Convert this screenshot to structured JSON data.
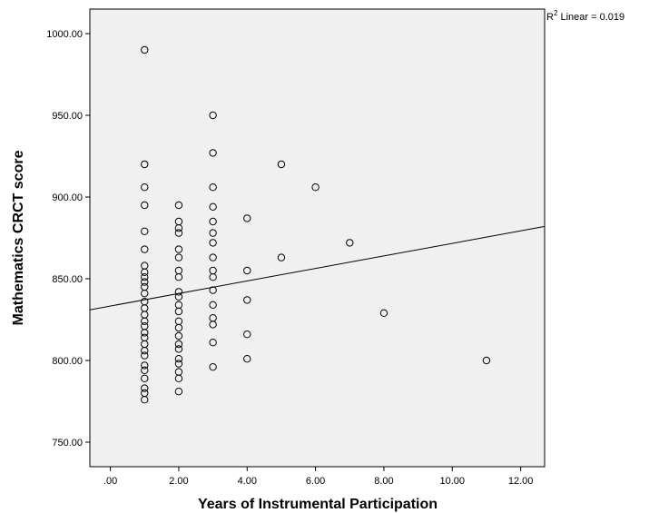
{
  "chart_data": {
    "type": "scatter",
    "xlabel": "Years of Instrumental Participation",
    "ylabel": "Mathematics CRCT score",
    "xlim": [
      -0.6,
      12.7
    ],
    "ylim": [
      735,
      1015
    ],
    "x_ticks": [
      0,
      2,
      4,
      6,
      8,
      10,
      12
    ],
    "x_tick_labels": [
      ".00",
      "2.00",
      "4.00",
      "6.00",
      "8.00",
      "10.00",
      "12.00"
    ],
    "y_ticks": [
      750,
      800,
      850,
      900,
      950,
      1000
    ],
    "y_tick_labels": [
      "750.00",
      "800.00",
      "850.00",
      "900.00",
      "950.00",
      "1000.00"
    ],
    "fit_line": {
      "x": [
        -0.6,
        12.7
      ],
      "y": [
        831,
        882
      ]
    },
    "annotation": {
      "prefix": "R",
      "superscript": "2",
      "text": " Linear = 0.019"
    },
    "grid": false,
    "points": [
      {
        "x": 1,
        "y": 990
      },
      {
        "x": 1,
        "y": 920
      },
      {
        "x": 1,
        "y": 906
      },
      {
        "x": 1,
        "y": 895
      },
      {
        "x": 1,
        "y": 879
      },
      {
        "x": 1,
        "y": 868
      },
      {
        "x": 1,
        "y": 858
      },
      {
        "x": 1,
        "y": 854
      },
      {
        "x": 1,
        "y": 851
      },
      {
        "x": 1,
        "y": 848
      },
      {
        "x": 1,
        "y": 845
      },
      {
        "x": 1,
        "y": 841
      },
      {
        "x": 1,
        "y": 836
      },
      {
        "x": 1,
        "y": 832
      },
      {
        "x": 1,
        "y": 828
      },
      {
        "x": 1,
        "y": 824
      },
      {
        "x": 1,
        "y": 821
      },
      {
        "x": 1,
        "y": 817
      },
      {
        "x": 1,
        "y": 814
      },
      {
        "x": 1,
        "y": 810
      },
      {
        "x": 1,
        "y": 806
      },
      {
        "x": 1,
        "y": 803
      },
      {
        "x": 1,
        "y": 797
      },
      {
        "x": 1,
        "y": 794
      },
      {
        "x": 1,
        "y": 789
      },
      {
        "x": 1,
        "y": 783
      },
      {
        "x": 1,
        "y": 780
      },
      {
        "x": 1,
        "y": 776
      },
      {
        "x": 2,
        "y": 895
      },
      {
        "x": 2,
        "y": 885
      },
      {
        "x": 2,
        "y": 881
      },
      {
        "x": 2,
        "y": 878
      },
      {
        "x": 2,
        "y": 868
      },
      {
        "x": 2,
        "y": 863
      },
      {
        "x": 2,
        "y": 855
      },
      {
        "x": 2,
        "y": 851
      },
      {
        "x": 2,
        "y": 842
      },
      {
        "x": 2,
        "y": 839
      },
      {
        "x": 2,
        "y": 834
      },
      {
        "x": 2,
        "y": 830
      },
      {
        "x": 2,
        "y": 824
      },
      {
        "x": 2,
        "y": 820
      },
      {
        "x": 2,
        "y": 815
      },
      {
        "x": 2,
        "y": 810
      },
      {
        "x": 2,
        "y": 807
      },
      {
        "x": 2,
        "y": 801
      },
      {
        "x": 2,
        "y": 798
      },
      {
        "x": 2,
        "y": 793
      },
      {
        "x": 2,
        "y": 789
      },
      {
        "x": 2,
        "y": 781
      },
      {
        "x": 3,
        "y": 950
      },
      {
        "x": 3,
        "y": 927
      },
      {
        "x": 3,
        "y": 906
      },
      {
        "x": 3,
        "y": 894
      },
      {
        "x": 3,
        "y": 885
      },
      {
        "x": 3,
        "y": 878
      },
      {
        "x": 3,
        "y": 872
      },
      {
        "x": 3,
        "y": 863
      },
      {
        "x": 3,
        "y": 855
      },
      {
        "x": 3,
        "y": 851
      },
      {
        "x": 3,
        "y": 843
      },
      {
        "x": 3,
        "y": 834
      },
      {
        "x": 3,
        "y": 826
      },
      {
        "x": 3,
        "y": 822
      },
      {
        "x": 3,
        "y": 811
      },
      {
        "x": 3,
        "y": 796
      },
      {
        "x": 4,
        "y": 887
      },
      {
        "x": 4,
        "y": 855
      },
      {
        "x": 4,
        "y": 837
      },
      {
        "x": 4,
        "y": 816
      },
      {
        "x": 4,
        "y": 801
      },
      {
        "x": 5,
        "y": 920
      },
      {
        "x": 5,
        "y": 863
      },
      {
        "x": 6,
        "y": 906
      },
      {
        "x": 7,
        "y": 872
      },
      {
        "x": 8,
        "y": 829
      },
      {
        "x": 11,
        "y": 800
      }
    ]
  }
}
